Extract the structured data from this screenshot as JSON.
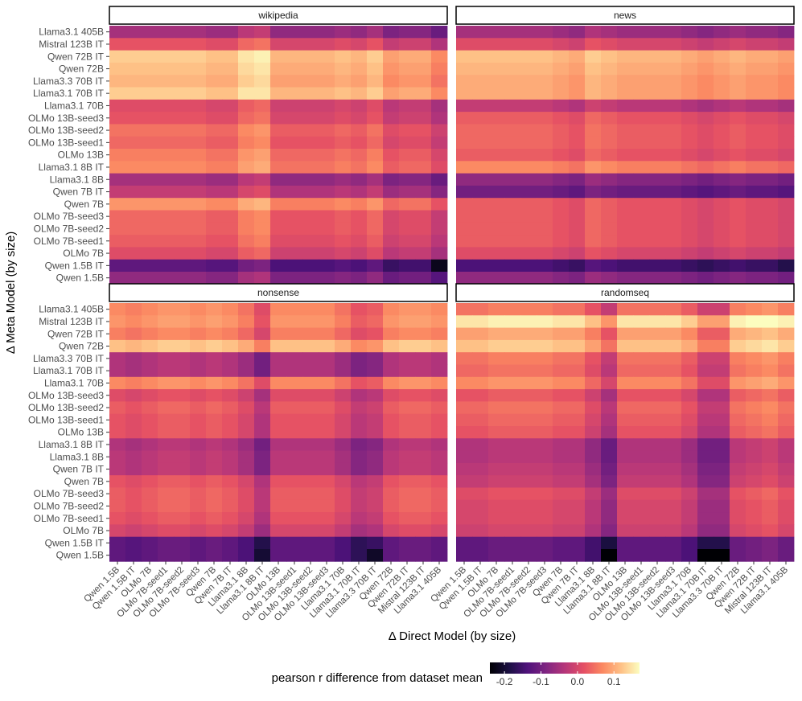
{
  "chart_data": {
    "type": "heatmap",
    "xlabel": "Δ Direct Model (by size)",
    "ylabel": "Δ Meta Model (by size)",
    "x_categories": [
      "Qwen 1.5B",
      "Qwen 1.5B IT",
      "OLMo 7B",
      "OLMo 7B-seed1",
      "OLMo 7B-seed2",
      "OLMo 7B-seed3",
      "Qwen 7B",
      "Qwen 7B IT",
      "Llama3.1 8B",
      "Llama3.1 8B IT",
      "OLMo 13B",
      "OLMo 13B-seed1",
      "OLMo 13B-seed2",
      "OLMo 13B-seed3",
      "Llama3.1 70B",
      "Llama3.1 70B IT",
      "Llama3.3 70B IT",
      "Qwen 72B",
      "Qwen 72B IT",
      "Mistral 123B IT",
      "Llama3.1 405B"
    ],
    "y_categories": [
      "Llama3.1 405B",
      "Mistral 123B IT",
      "Qwen 72B IT",
      "Qwen 72B",
      "Llama3.3 70B IT",
      "Llama3.1 70B IT",
      "Llama3.1 70B",
      "OLMo 13B-seed3",
      "OLMo 13B-seed2",
      "OLMo 13B-seed1",
      "OLMo 13B",
      "Llama3.1 8B IT",
      "Llama3.1 8B",
      "Qwen 7B IT",
      "Qwen 7B",
      "OLMo 7B-seed3",
      "OLMo 7B-seed2",
      "OLMo 7B-seed1",
      "OLMo 7B",
      "Qwen 1.5B IT",
      "Qwen 1.5B"
    ],
    "colorscale": "magma",
    "color_range": [
      -0.24,
      0.17
    ],
    "legend": {
      "title": "pearson r difference from dataset mean",
      "ticks": [
        -0.2,
        -0.1,
        0.0,
        0.1
      ],
      "tick_labels": [
        "-0.2",
        "-0.1",
        "0.0",
        "0.1"
      ],
      "placement": "bottom"
    },
    "panels": [
      {
        "name": "wikipedia",
        "row_values": [
          -0.05,
          0.02,
          0.13,
          0.12,
          0.11,
          0.13,
          0.01,
          0.02,
          0.05,
          0.04,
          0.06,
          0.07,
          -0.05,
          -0.02,
          0.08,
          0.04,
          0.04,
          0.03,
          0.01,
          -0.12,
          -0.07
        ],
        "col_offsets": [
          0.0,
          0.0,
          0.0,
          0.0,
          0.0,
          0.0,
          -0.01,
          -0.01,
          0.02,
          0.03,
          -0.02,
          -0.02,
          -0.02,
          -0.02,
          -0.01,
          -0.02,
          0.0,
          -0.04,
          -0.03,
          -0.03,
          -0.06
        ],
        "notable_cells": [
          {
            "row": "Qwen 1.5B IT",
            "col": "Llama3.1 405B",
            "value": -0.22
          },
          {
            "row": "Llama3.1 70B IT",
            "col": "Llama3.1 8B IT",
            "value": 0.15
          }
        ]
      },
      {
        "name": "news",
        "row_values": [
          -0.05,
          0.01,
          0.12,
          0.11,
          0.1,
          0.1,
          -0.02,
          0.03,
          0.04,
          0.04,
          0.03,
          0.07,
          -0.07,
          -0.1,
          0.03,
          0.03,
          0.03,
          0.03,
          0.01,
          -0.14,
          -0.07
        ],
        "col_offsets": [
          0.0,
          0.0,
          0.0,
          0.0,
          0.0,
          0.0,
          -0.01,
          -0.02,
          0.01,
          0.0,
          -0.01,
          -0.01,
          -0.01,
          -0.01,
          -0.02,
          -0.03,
          -0.02,
          -0.01,
          -0.02,
          -0.02,
          -0.03
        ],
        "notable_cells": [
          {
            "row": "Qwen 1.5B IT",
            "col": "Llama3.1 405B",
            "value": -0.18
          }
        ]
      },
      {
        "name": "nonsense",
        "row_values": [
          0.07,
          0.08,
          0.06,
          0.12,
          -0.04,
          -0.04,
          0.07,
          0.01,
          0.03,
          0.02,
          0.02,
          -0.04,
          -0.03,
          -0.03,
          0.02,
          0.03,
          0.03,
          0.02,
          0.0,
          -0.12,
          -0.12
        ],
        "col_offsets": [
          0.0,
          -0.01,
          0.0,
          0.01,
          0.01,
          0.0,
          0.01,
          0.0,
          -0.02,
          -0.06,
          0.0,
          0.0,
          0.0,
          0.0,
          -0.02,
          -0.05,
          -0.04,
          0.0,
          0.01,
          0.01,
          0.0
        ],
        "notable_cells": [
          {
            "row": "Qwen 1.5B",
            "col": "Llama3.1 8B IT",
            "value": -0.2
          },
          {
            "row": "Qwen 1.5B",
            "col": "Llama3.3 70B IT",
            "value": -0.21
          }
        ]
      },
      {
        "name": "randomseq",
        "row_values": [
          0.05,
          0.15,
          0.09,
          0.12,
          0.05,
          0.04,
          0.07,
          0.02,
          0.04,
          0.03,
          0.02,
          -0.04,
          -0.04,
          -0.03,
          -0.02,
          0.01,
          0.0,
          0.0,
          -0.01,
          -0.12,
          -0.12
        ],
        "col_offsets": [
          0.0,
          0.0,
          0.01,
          0.01,
          0.01,
          0.01,
          0.0,
          0.0,
          -0.03,
          -0.07,
          0.0,
          0.0,
          0.0,
          0.0,
          -0.02,
          -0.06,
          -0.06,
          0.01,
          0.02,
          0.03,
          0.01
        ],
        "notable_cells": [
          {
            "row": "Qwen 1.5B",
            "col": "Llama3.1 8B IT",
            "value": -0.24
          },
          {
            "row": "Qwen 1.5B",
            "col": "Llama3.1 70B IT",
            "value": -0.24
          },
          {
            "row": "Qwen 1.5B",
            "col": "Llama3.3 70B IT",
            "value": -0.24
          },
          {
            "row": "Mistral 123B IT",
            "col": "Mistral 123B IT",
            "value": 0.17
          }
        ]
      }
    ]
  }
}
